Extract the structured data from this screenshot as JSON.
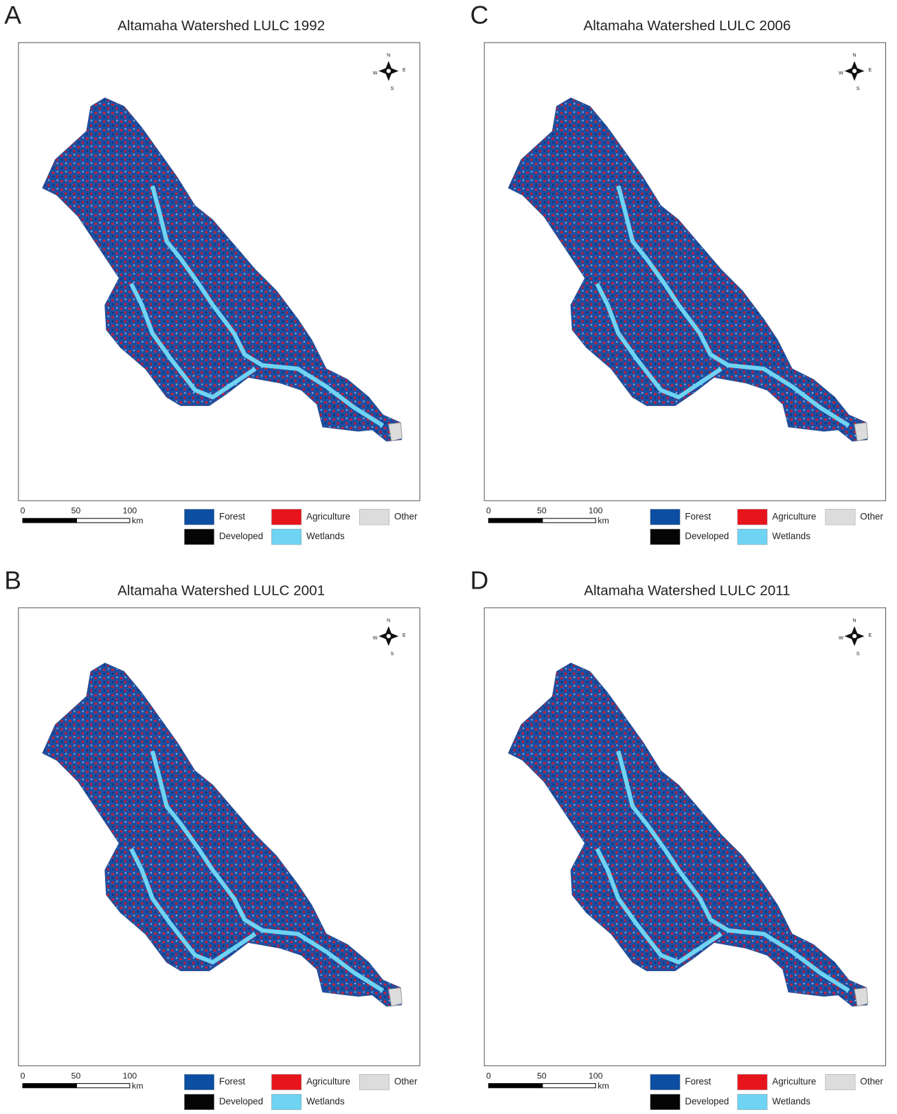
{
  "panels": [
    {
      "letter": "A",
      "title": "Altamaha Watershed LULC 1992",
      "scale": {
        "ticks": [
          "0",
          "50",
          "100"
        ],
        "unit": "km"
      },
      "compass": {
        "n": "N",
        "e": "E",
        "s": "S",
        "w": "W"
      },
      "legend": [
        {
          "label": "Forest",
          "color": "#0b4ea2"
        },
        {
          "label": "Agriculture",
          "color": "#e8141b"
        },
        {
          "label": "Other",
          "color": "#dcdcdc"
        },
        {
          "label": "Developed",
          "color": "#050505"
        },
        {
          "label": "Wetlands",
          "color": "#6fd3f3"
        }
      ]
    },
    {
      "letter": "C",
      "title": "Altamaha Watershed LULC 2006",
      "scale": {
        "ticks": [
          "0",
          "50",
          "100"
        ],
        "unit": "km"
      },
      "compass": {
        "n": "N",
        "e": "E",
        "s": "S",
        "w": "W"
      },
      "legend": [
        {
          "label": "Forest",
          "color": "#0b4ea2"
        },
        {
          "label": "Agriculture",
          "color": "#e8141b"
        },
        {
          "label": "Other",
          "color": "#dcdcdc"
        },
        {
          "label": "Developed",
          "color": "#050505"
        },
        {
          "label": "Wetlands",
          "color": "#6fd3f3"
        }
      ]
    },
    {
      "letter": "B",
      "title": "Altamaha Watershed LULC 2001",
      "scale": {
        "ticks": [
          "0",
          "50",
          "100"
        ],
        "unit": "km"
      },
      "compass": {
        "n": "N",
        "e": "E",
        "s": "S",
        "w": "W"
      },
      "legend": [
        {
          "label": "Forest",
          "color": "#0b4ea2"
        },
        {
          "label": "Agriculture",
          "color": "#e8141b"
        },
        {
          "label": "Other",
          "color": "#dcdcdc"
        },
        {
          "label": "Developed",
          "color": "#050505"
        },
        {
          "label": "Wetlands",
          "color": "#6fd3f3"
        }
      ]
    },
    {
      "letter": "D",
      "title": "Altamaha Watershed LULC 2011",
      "scale": {
        "ticks": [
          "0",
          "50",
          "100"
        ],
        "unit": "km"
      },
      "compass": {
        "n": "N",
        "e": "E",
        "s": "S",
        "w": "W"
      },
      "legend": [
        {
          "label": "Forest",
          "color": "#0b4ea2"
        },
        {
          "label": "Agriculture",
          "color": "#e8141b"
        },
        {
          "label": "Other",
          "color": "#dcdcdc"
        },
        {
          "label": "Developed",
          "color": "#050505"
        },
        {
          "label": "Wetlands",
          "color": "#6fd3f3"
        }
      ]
    }
  ]
}
